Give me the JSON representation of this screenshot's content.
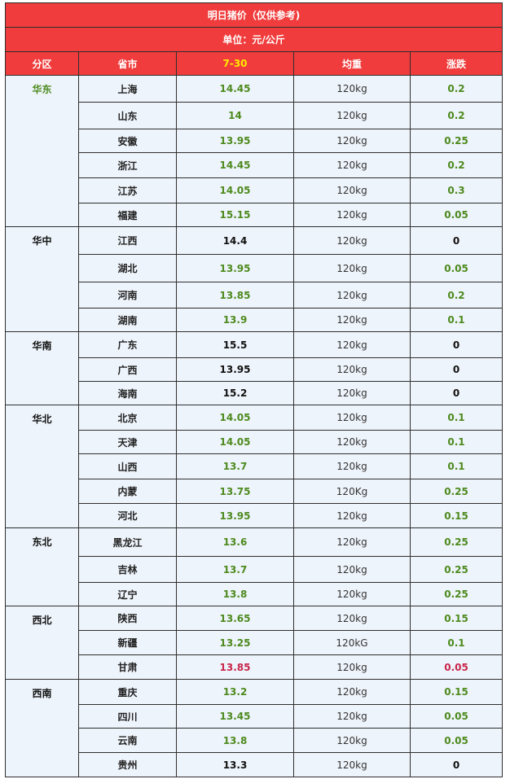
{
  "title": "明日猪价（仅供参考)",
  "unit": "单位：元/公斤",
  "headers": {
    "region": "分区",
    "province": "省市",
    "date": "7-30",
    "weight": "均重",
    "change": "涨跌"
  },
  "regions": [
    {
      "name": "华东",
      "color": "green",
      "rows": [
        {
          "province": "上海",
          "provColor": "black",
          "price": "14.45",
          "priceColor": "green",
          "weight": "120kg",
          "weightColor": "normal",
          "change": "0.2",
          "changeColor": "green",
          "h": 33
        },
        {
          "province": "山东",
          "provColor": "black",
          "price": "14",
          "priceColor": "green",
          "weight": "120kg",
          "weightColor": "normal",
          "change": "0.2",
          "changeColor": "green",
          "h": 33
        },
        {
          "province": "安徽",
          "provColor": "black",
          "price": "13.95",
          "priceColor": "green",
          "weight": "120kg",
          "weightColor": "normal",
          "change": "0.25",
          "changeColor": "green",
          "h": 29
        },
        {
          "province": "浙江",
          "provColor": "black",
          "price": "14.45",
          "priceColor": "green",
          "weight": "120kg",
          "weightColor": "normal",
          "change": "0.2",
          "changeColor": "green",
          "h": 31
        },
        {
          "province": "江苏",
          "provColor": "black",
          "price": "14.05",
          "priceColor": "green",
          "weight": "120kg",
          "weightColor": "normal",
          "change": "0.3",
          "changeColor": "green",
          "h": 31
        },
        {
          "province": "福建",
          "provColor": "black",
          "price": "15.15",
          "priceColor": "green",
          "weight": "120kg",
          "weightColor": "red",
          "change": "0.05",
          "changeColor": "green",
          "h": 29
        }
      ]
    },
    {
      "name": "华中",
      "color": "black",
      "rows": [
        {
          "province": "江西",
          "provColor": "black",
          "price": "14.4",
          "priceColor": "black",
          "weight": "120kg",
          "weightColor": "normal",
          "change": "0",
          "changeColor": "black",
          "h": 34
        },
        {
          "province": "湖北",
          "provColor": "black",
          "price": "13.95",
          "priceColor": "green",
          "weight": "120kg",
          "weightColor": "normal",
          "change": "0.05",
          "changeColor": "green",
          "h": 34
        },
        {
          "province": "河南",
          "provColor": "black",
          "price": "13.85",
          "priceColor": "green",
          "weight": "120kg",
          "weightColor": "normal",
          "change": "0.2",
          "changeColor": "green",
          "h": 32
        },
        {
          "province": "湖南",
          "provColor": "black",
          "price": "13.9",
          "priceColor": "green",
          "weight": "120kg",
          "weightColor": "normal",
          "change": "0.1",
          "changeColor": "green",
          "h": 29
        }
      ]
    },
    {
      "name": "华南",
      "color": "black",
      "rows": [
        {
          "province": "广东",
          "provColor": "black",
          "price": "15.5",
          "priceColor": "black",
          "weight": "120kg",
          "weightColor": "red",
          "change": "0",
          "changeColor": "black",
          "h": 32
        },
        {
          "province": "广西",
          "provColor": "black",
          "price": "13.95",
          "priceColor": "black",
          "weight": "120kg",
          "weightColor": "normal",
          "change": "0",
          "changeColor": "black",
          "h": 29
        },
        {
          "province": "海南",
          "provColor": "black",
          "price": "15.2",
          "priceColor": "black",
          "weight": "120kg",
          "weightColor": "normal",
          "change": "0",
          "changeColor": "black",
          "h": 29
        }
      ]
    },
    {
      "name": "华北",
      "color": "black",
      "rows": [
        {
          "province": "北京",
          "provColor": "black",
          "price": "14.05",
          "priceColor": "green",
          "weight": "120kg",
          "weightColor": "normal",
          "change": "0.1",
          "changeColor": "green",
          "h": 31
        },
        {
          "province": "天津",
          "provColor": "black",
          "price": "14.05",
          "priceColor": "green",
          "weight": "120kg",
          "weightColor": "normal",
          "change": "0.1",
          "changeColor": "green",
          "h": 29
        },
        {
          "province": "山西",
          "provColor": "black",
          "price": "13.7",
          "priceColor": "green",
          "weight": "120kg",
          "weightColor": "normal",
          "change": "0.1",
          "changeColor": "green",
          "h": 31
        },
        {
          "province": "内蒙",
          "provColor": "black",
          "price": "13.75",
          "priceColor": "green",
          "weight": "120Kg",
          "weightColor": "normal",
          "change": "0.25",
          "changeColor": "green",
          "h": 30
        },
        {
          "province": "河北",
          "provColor": "black",
          "price": "13.95",
          "priceColor": "green",
          "weight": "120kg",
          "weightColor": "normal",
          "change": "0.15",
          "changeColor": "green",
          "h": 30
        }
      ]
    },
    {
      "name": "东北",
      "color": "black",
      "rows": [
        {
          "province": "黑龙江",
          "provColor": "black",
          "price": "13.6",
          "priceColor": "green",
          "weight": "120kg",
          "weightColor": "normal",
          "change": "0.25",
          "changeColor": "green",
          "h": 35
        },
        {
          "province": "吉林",
          "provColor": "black",
          "price": "13.7",
          "priceColor": "green",
          "weight": "120kg",
          "weightColor": "normal",
          "change": "0.25",
          "changeColor": "green",
          "h": 32
        },
        {
          "province": "辽宁",
          "provColor": "black",
          "price": "13.8",
          "priceColor": "green",
          "weight": "120kg",
          "weightColor": "normal",
          "change": "0.25",
          "changeColor": "green",
          "h": 29
        }
      ]
    },
    {
      "name": "西北",
      "color": "black",
      "rows": [
        {
          "province": "陕西",
          "provColor": "black",
          "price": "13.65",
          "priceColor": "green",
          "weight": "120kg",
          "weightColor": "normal",
          "change": "0.15",
          "changeColor": "green",
          "h": 30
        },
        {
          "province": "新疆",
          "provColor": "black",
          "price": "13.25",
          "priceColor": "green",
          "weight": "120kG",
          "weightColor": "normal",
          "change": "0.1",
          "changeColor": "green",
          "h": 30
        },
        {
          "province": "甘肃",
          "provColor": "black",
          "price": "13.85",
          "priceColor": "red",
          "weight": "120kg",
          "weightColor": "normal",
          "change": "0.05",
          "changeColor": "red",
          "h": 30
        }
      ]
    },
    {
      "name": "西南",
      "color": "black",
      "rows": [
        {
          "province": "重庆",
          "provColor": "black",
          "price": "13.2",
          "priceColor": "green",
          "weight": "120kg",
          "weightColor": "red",
          "change": "0.15",
          "changeColor": "green",
          "h": 31
        },
        {
          "province": "四川",
          "provColor": "black",
          "price": "13.45",
          "priceColor": "green",
          "weight": "120kg",
          "weightColor": "normal",
          "change": "0.05",
          "changeColor": "green",
          "h": 29
        },
        {
          "province": "云南",
          "provColor": "green",
          "price": "13.8",
          "priceColor": "green",
          "weight": "120kg",
          "weightColor": "normal",
          "change": "0.05",
          "changeColor": "green",
          "h": 30
        },
        {
          "province": "贵州",
          "provColor": "black",
          "price": "13.3",
          "priceColor": "black",
          "weight": "120kg",
          "weightColor": "normal",
          "change": "0",
          "changeColor": "black",
          "h": 30
        }
      ]
    }
  ]
}
